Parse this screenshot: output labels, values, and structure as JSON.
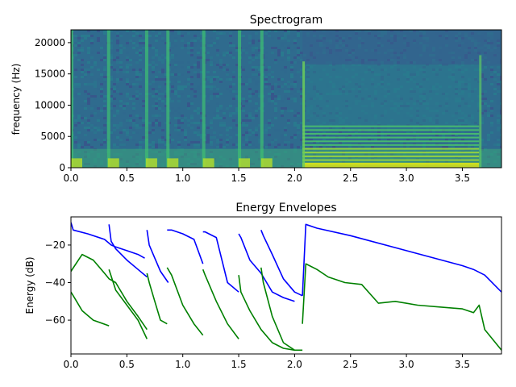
{
  "chart_data": [
    {
      "type": "heatmap",
      "title": "Spectrogram",
      "xlabel": "",
      "ylabel": "frequency (Hz)",
      "xlim": [
        0.0,
        3.85
      ],
      "ylim": [
        0,
        22050
      ],
      "x_ticks": [
        0.0,
        0.5,
        1.0,
        1.5,
        2.0,
        2.5,
        3.0,
        3.5
      ],
      "x_tick_labels": [
        "0.0",
        "0.5",
        "1.0",
        "1.5",
        "2.0",
        "2.5",
        "3.0",
        "3.5"
      ],
      "y_ticks": [
        0,
        5000,
        10000,
        15000,
        20000
      ],
      "y_tick_labels": [
        "0",
        "5000",
        "10000",
        "15000",
        "20000"
      ],
      "colormap": "viridis",
      "onsets": [
        0.0,
        0.33,
        0.67,
        0.86,
        1.18,
        1.5,
        1.7,
        2.07
      ],
      "sustain_region": {
        "start": 2.07,
        "end": 3.85,
        "fade_at": 3.65
      },
      "grid": false
    },
    {
      "type": "line",
      "title": "Energy Envelopes",
      "xlabel": "",
      "ylabel": "Energy (dB)",
      "xlim": [
        0.0,
        3.85
      ],
      "ylim": [
        -78,
        -5
      ],
      "x_ticks": [
        0.0,
        0.5,
        1.0,
        1.5,
        2.0,
        2.5,
        3.0,
        3.5
      ],
      "x_tick_labels": [
        "0.0",
        "0.5",
        "1.0",
        "1.5",
        "2.0",
        "2.5",
        "3.0",
        "3.5"
      ],
      "y_ticks": [
        -60,
        -40,
        -20
      ],
      "y_tick_labels": [
        "−60",
        "−40",
        "−20"
      ],
      "grid": false,
      "series": [
        {
          "color": "#0000ff",
          "x": [
            0.0,
            0.02,
            0.15,
            0.3,
            0.34,
            0.36,
            0.4,
            0.5,
            0.6,
            0.66
          ],
          "values": [
            -8,
            -12,
            -14,
            -17,
            -19,
            -20,
            -21,
            -23,
            -25,
            -27
          ]
        },
        {
          "color": "#0000ff",
          "x": [
            0.34,
            0.36,
            0.4,
            0.5,
            0.6,
            0.68
          ],
          "values": [
            -9,
            -18,
            -22,
            -28,
            -33,
            -37
          ]
        },
        {
          "color": "#0000ff",
          "x": [
            0.68,
            0.7,
            0.75,
            0.8,
            0.87
          ],
          "values": [
            -12,
            -20,
            -27,
            -34,
            -40
          ]
        },
        {
          "color": "#0000ff",
          "x": [
            0.86,
            0.9,
            1.0,
            1.1,
            1.18
          ],
          "values": [
            -12,
            -12,
            -14,
            -17,
            -30
          ]
        },
        {
          "color": "#0000ff",
          "x": [
            1.18,
            1.2,
            1.3,
            1.4,
            1.5
          ],
          "values": [
            -13,
            -13,
            -16,
            -40,
            -45
          ]
        },
        {
          "color": "#0000ff",
          "x": [
            1.5,
            1.52,
            1.6,
            1.7,
            1.8,
            1.9,
            2.0
          ],
          "values": [
            -14,
            -16,
            -28,
            -35,
            -45,
            -48,
            -50
          ]
        },
        {
          "color": "#0000ff",
          "x": [
            1.7,
            1.72,
            1.8,
            1.9,
            2.0,
            2.07
          ],
          "values": [
            -12,
            -15,
            -25,
            -38,
            -45,
            -47
          ]
        },
        {
          "color": "#0000ff",
          "x": [
            2.07,
            2.1,
            2.2,
            2.5,
            3.0,
            3.5,
            3.6,
            3.7,
            3.85
          ],
          "values": [
            -47,
            -9,
            -11,
            -15,
            -23,
            -31,
            -33,
            -36,
            -45
          ]
        },
        {
          "color": "#008000",
          "x": [
            0.0,
            0.03,
            0.1,
            0.2,
            0.34
          ],
          "values": [
            -45,
            -48,
            -55,
            -60,
            -63
          ]
        },
        {
          "color": "#008000",
          "x": [
            0.0,
            0.1,
            0.2,
            0.3,
            0.34,
            0.4,
            0.5,
            0.6,
            0.68
          ],
          "values": [
            -34,
            -25,
            -28,
            -35,
            -38,
            -40,
            -50,
            -58,
            -65
          ]
        },
        {
          "color": "#008000",
          "x": [
            0.34,
            0.4,
            0.5,
            0.6,
            0.68
          ],
          "values": [
            -33,
            -44,
            -52,
            -60,
            -70
          ]
        },
        {
          "color": "#008000",
          "x": [
            0.68,
            0.7,
            0.75,
            0.8,
            0.86
          ],
          "values": [
            -35,
            -40,
            -50,
            -60,
            -62
          ]
        },
        {
          "color": "#008000",
          "x": [
            0.86,
            0.9,
            1.0,
            1.1,
            1.18
          ],
          "values": [
            -32,
            -36,
            -52,
            -62,
            -68
          ]
        },
        {
          "color": "#008000",
          "x": [
            1.18,
            1.2,
            1.3,
            1.4,
            1.5
          ],
          "values": [
            -33,
            -36,
            -50,
            -62,
            -70
          ]
        },
        {
          "color": "#008000",
          "x": [
            1.5,
            1.52,
            1.6,
            1.7,
            1.8,
            1.9,
            2.0
          ],
          "values": [
            -36,
            -45,
            -55,
            -65,
            -72,
            -75,
            -76
          ]
        },
        {
          "color": "#008000",
          "x": [
            1.7,
            1.72,
            1.8,
            1.9,
            2.0,
            2.07
          ],
          "values": [
            -32,
            -40,
            -58,
            -72,
            -76,
            -76
          ]
        },
        {
          "color": "#008000",
          "x": [
            2.07,
            2.1,
            2.2,
            2.3,
            2.45,
            2.6,
            2.75,
            2.9,
            3.1,
            3.3,
            3.5,
            3.6,
            3.65,
            3.7,
            3.85
          ],
          "values": [
            -62,
            -30,
            -33,
            -37,
            -40,
            -41,
            -51,
            -50,
            -52,
            -53,
            -54,
            -56,
            -52,
            -65,
            -76
          ]
        }
      ]
    }
  ]
}
